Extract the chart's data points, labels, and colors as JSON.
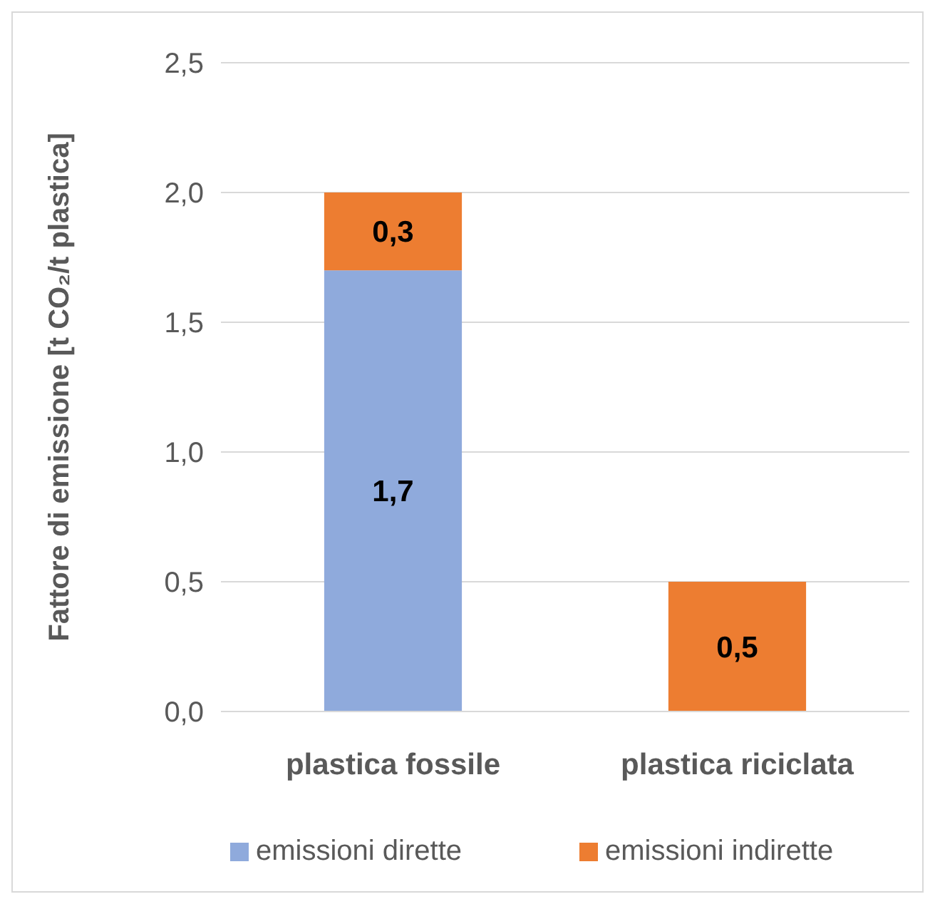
{
  "chart_data": {
    "type": "bar",
    "stacked": true,
    "ylabel": "Fattore di emissione [t CO₂/t plastica]",
    "categories": [
      "plastica fossile",
      "plastica riciclata"
    ],
    "series": [
      {
        "name": "emissioni dirette",
        "color": "#8faadc",
        "values": [
          1.7,
          null
        ],
        "value_labels": [
          "1,7",
          null
        ]
      },
      {
        "name": "emissioni indirette",
        "color": "#ed7d31",
        "values": [
          0.3,
          0.5
        ],
        "value_labels": [
          "0,3",
          "0,5"
        ]
      }
    ],
    "ylim": [
      0,
      2.5
    ],
    "yticks": [
      {
        "value": 0,
        "label": "0,0"
      },
      {
        "value": 0.5,
        "label": "0,5"
      },
      {
        "value": 1,
        "label": "1,0"
      },
      {
        "value": 1.5,
        "label": "1,5"
      },
      {
        "value": 2,
        "label": "2,0"
      },
      {
        "value": 2.5,
        "label": "2,5"
      }
    ],
    "grid": "y",
    "legend": "bottom"
  }
}
